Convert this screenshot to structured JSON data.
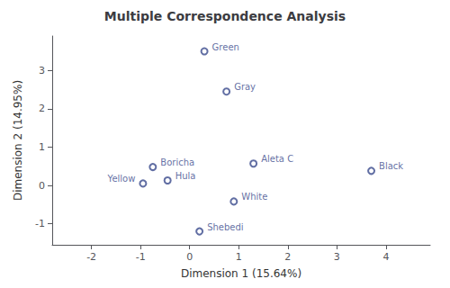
{
  "chart_data": {
    "type": "scatter",
    "title": "Multiple Correspondence Analysis",
    "x_label": "Dimension 1 (15.64%)",
    "y_label": "Dimension 2 (14.95%)",
    "labels": [
      "Green",
      "Gray",
      "Boricha",
      "Hula",
      "Yellow",
      "Aleta C",
      "Black",
      "White",
      "Shebedi"
    ],
    "x": [
      0.3,
      0.75,
      -0.75,
      -0.45,
      -0.95,
      1.3,
      3.7,
      0.9,
      0.2
    ],
    "values": [
      3.5,
      2.45,
      0.48,
      0.13,
      0.05,
      0.57,
      0.38,
      -0.42,
      -1.2
    ],
    "color": "#3a4a8c",
    "marker": "circle",
    "xlim": [
      -2.8,
      4.9
    ],
    "ylim": [
      -1.55,
      3.9
    ],
    "xticks": [
      -2,
      -1,
      0,
      1,
      2,
      3,
      4
    ],
    "yticks": [
      -1,
      0,
      1,
      2,
      3
    ],
    "grid": false
  }
}
